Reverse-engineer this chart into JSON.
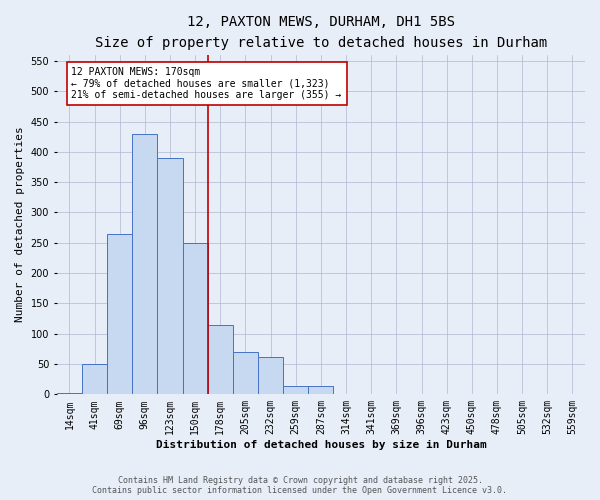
{
  "title_line1": "12, PAXTON MEWS, DURHAM, DH1 5BS",
  "title_line2": "Size of property relative to detached houses in Durham",
  "xlabel": "Distribution of detached houses by size in Durham",
  "ylabel": "Number of detached properties",
  "categories": [
    "14sqm",
    "41sqm",
    "69sqm",
    "96sqm",
    "123sqm",
    "150sqm",
    "178sqm",
    "205sqm",
    "232sqm",
    "259sqm",
    "287sqm",
    "314sqm",
    "341sqm",
    "369sqm",
    "396sqm",
    "423sqm",
    "450sqm",
    "478sqm",
    "505sqm",
    "532sqm",
    "559sqm"
  ],
  "values": [
    2,
    50,
    265,
    430,
    390,
    250,
    115,
    70,
    62,
    14,
    13,
    0,
    0,
    0,
    0,
    0,
    0,
    0,
    0,
    0,
    0
  ],
  "bar_color": "#c6d9f0",
  "bar_edge_color": "#4472c4",
  "marker_color": "#c00000",
  "annotation_text": "12 PAXTON MEWS: 170sqm\n← 79% of detached houses are smaller (1,323)\n21% of semi-detached houses are larger (355) →",
  "annotation_box_color": "#ffffff",
  "annotation_box_edge": "#c00000",
  "ylim": [
    0,
    560
  ],
  "yticks": [
    0,
    50,
    100,
    150,
    200,
    250,
    300,
    350,
    400,
    450,
    500,
    550
  ],
  "footer_line1": "Contains HM Land Registry data © Crown copyright and database right 2025.",
  "footer_line2": "Contains public sector information licensed under the Open Government Licence v3.0.",
  "bg_color": "#e8eef8",
  "grid_color": "#b0b8d0",
  "title1_fontsize": 10,
  "title2_fontsize": 8,
  "ylabel_fontsize": 8,
  "xlabel_fontsize": 8,
  "tick_fontsize": 7,
  "annot_fontsize": 7,
  "footer_fontsize": 6
}
